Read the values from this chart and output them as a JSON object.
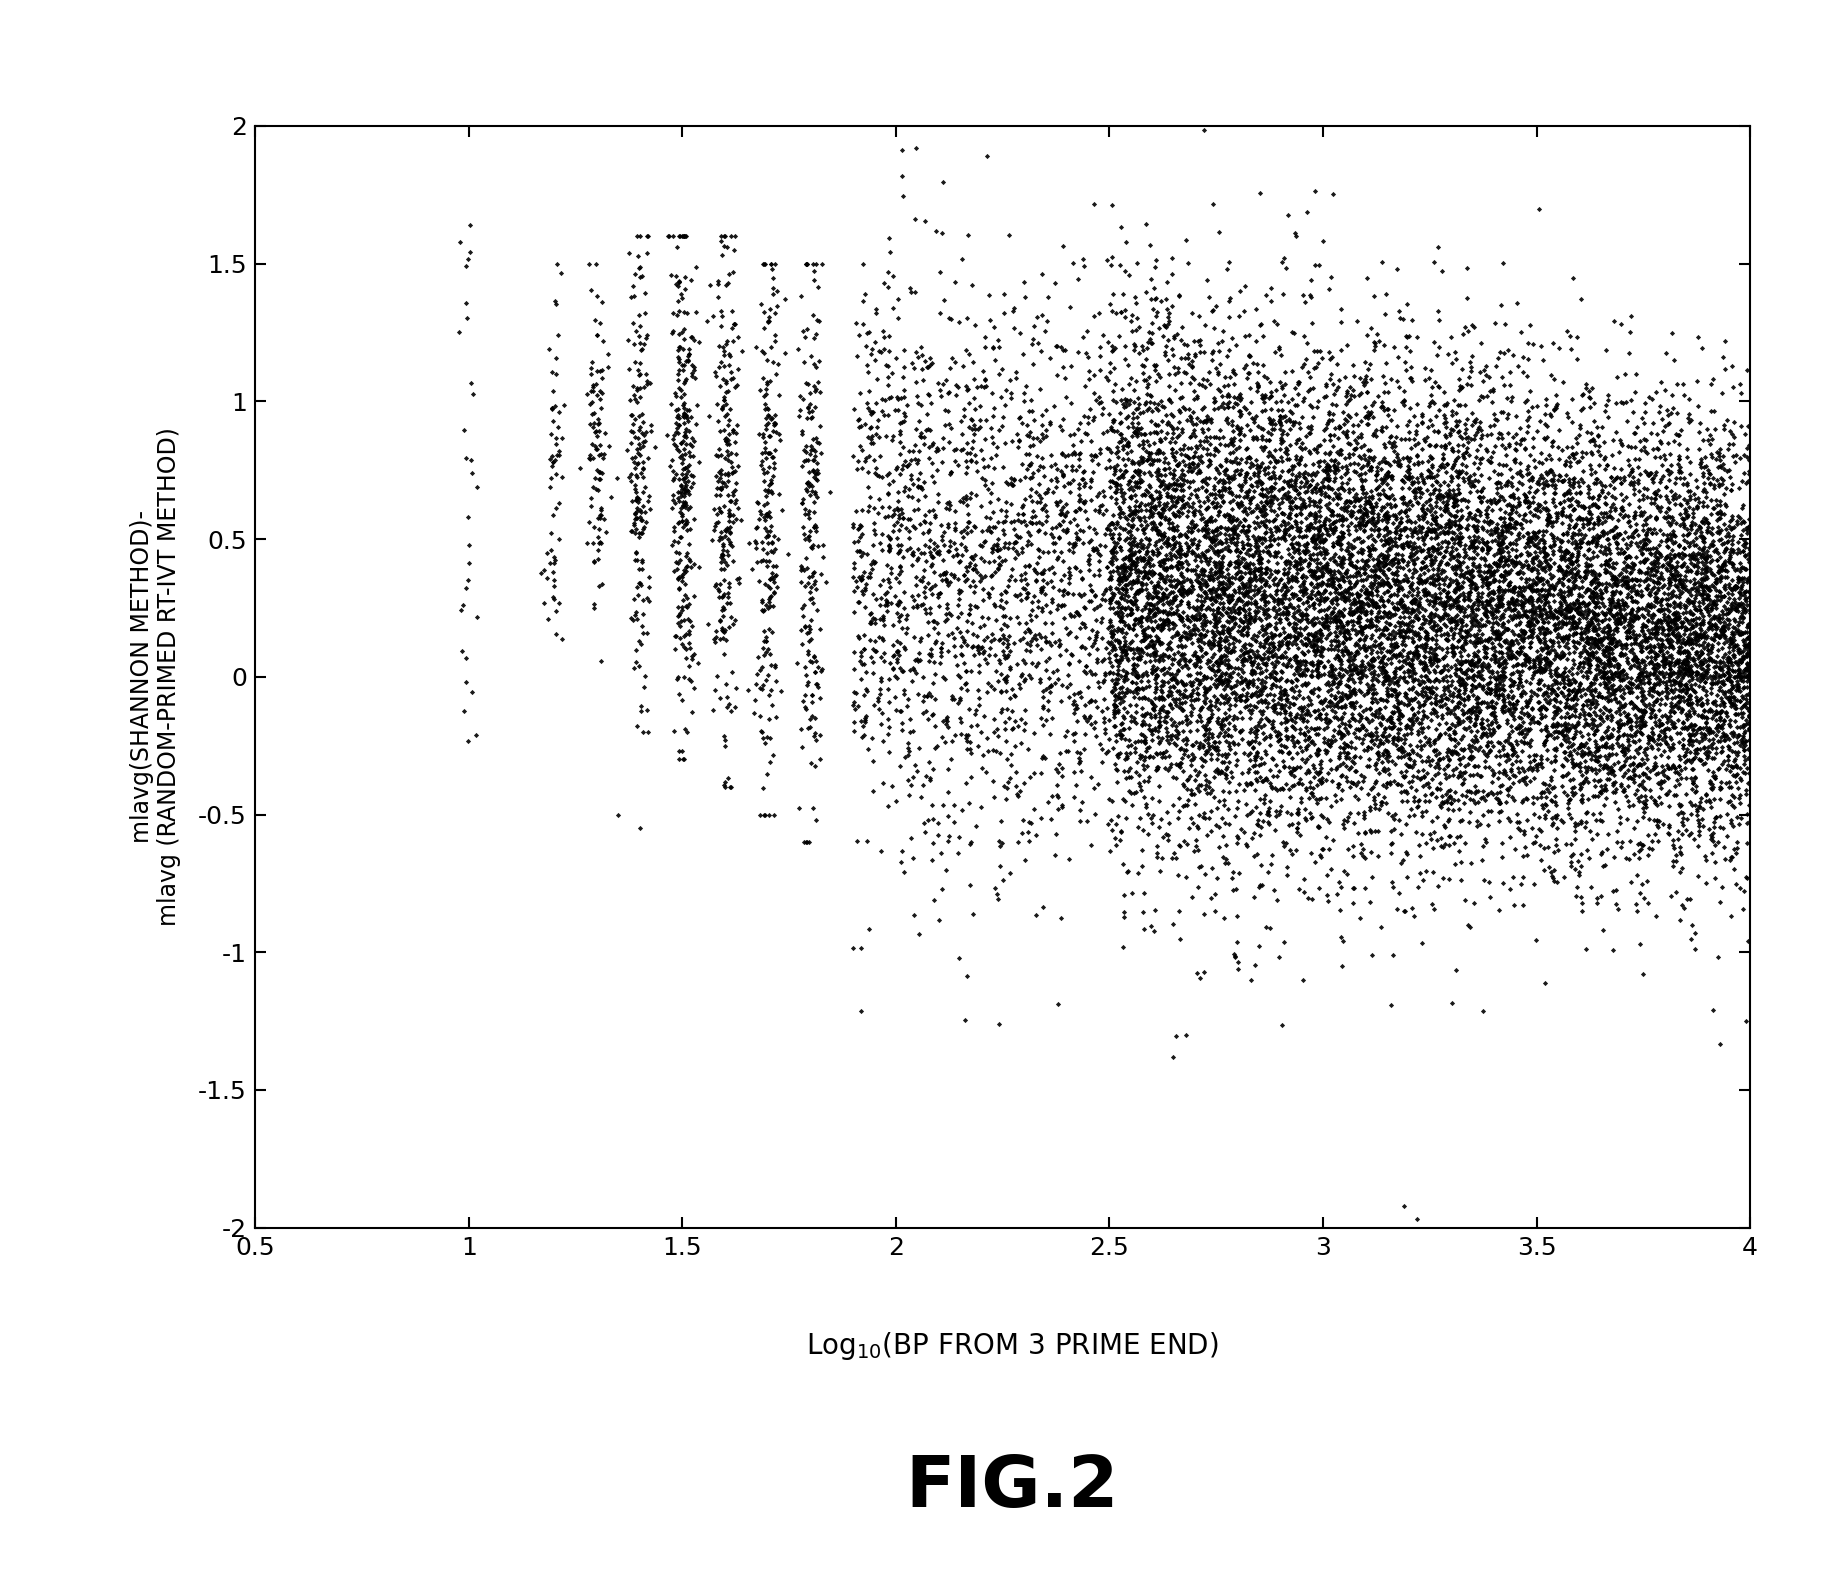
{
  "title": "FIG.2",
  "ylabel_line1": "mlavg(SHANNON METHOD)-",
  "ylabel_line2": "mlavg (RANDOM-PRIMED RT-IVT METHOD)",
  "xlim": [
    0.5,
    4.0
  ],
  "ylim": [
    -2.0,
    2.0
  ],
  "xticks": [
    0.5,
    1.0,
    1.5,
    2.0,
    2.5,
    3.0,
    3.5,
    4.0
  ],
  "yticks": [
    -2.0,
    -1.5,
    -1.0,
    -0.5,
    0.0,
    0.5,
    1.0,
    1.5,
    2.0
  ],
  "marker_color": "black",
  "bg_color": "white",
  "seed": 42,
  "n_points": 8000,
  "figwidth": 18.23,
  "figheight": 15.74,
  "dpi": 100
}
